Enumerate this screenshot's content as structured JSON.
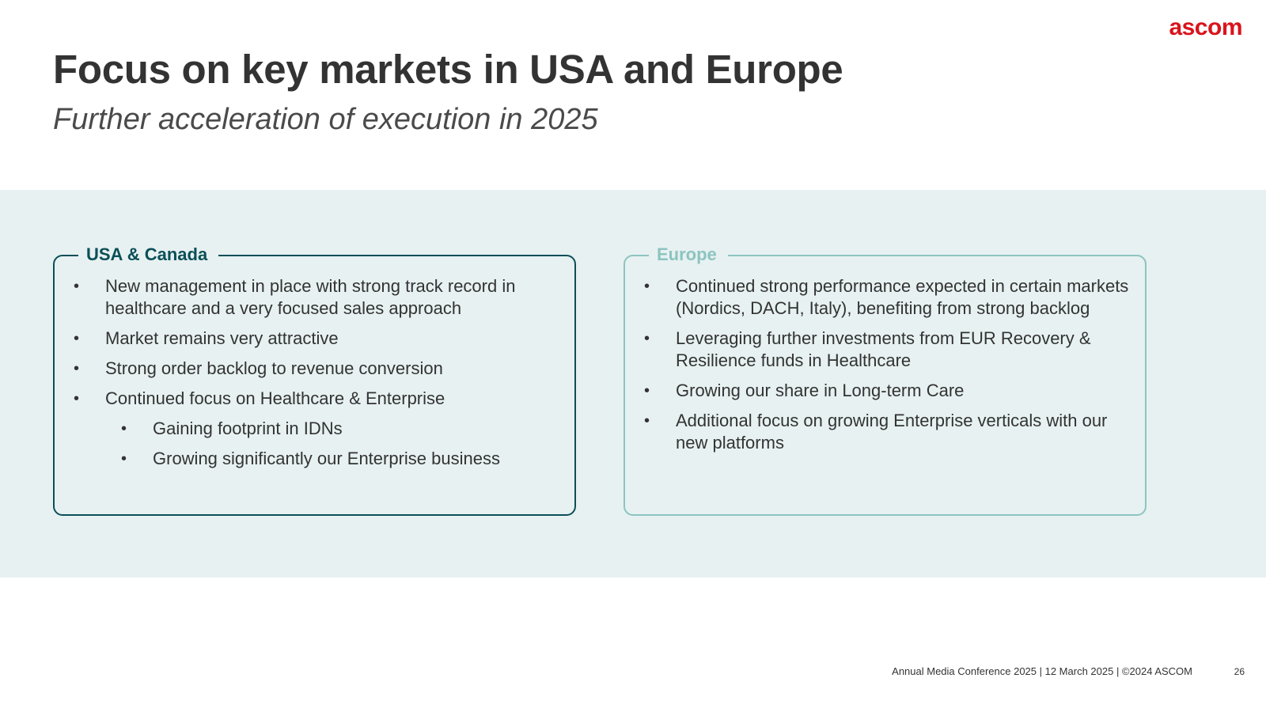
{
  "logo": "ascom",
  "title": "Focus on key markets in USA and Europe",
  "subtitle": "Further acceleration of execution in 2025",
  "cards": [
    {
      "label": "USA & Canada",
      "items": [
        {
          "text": "New management in place with strong track record in healthcare and a very focused sales approach",
          "level": 1
        },
        {
          "text": "Market remains very attractive",
          "level": 1
        },
        {
          "text": "Strong order backlog to revenue conversion",
          "level": 1
        },
        {
          "text": "Continued focus on Healthcare & Enterprise",
          "level": 1
        },
        {
          "text": "Gaining footprint in IDNs",
          "level": 2
        },
        {
          "text": "Growing significantly our Enterprise business",
          "level": 2
        }
      ]
    },
    {
      "label": "Europe",
      "items": [
        {
          "text": "Continued strong performance expected in certain markets (Nordics, DACH, Italy), benefiting from strong backlog",
          "level": 1
        },
        {
          "text": "Leveraging further investments from EUR Recovery & Resilience funds in Healthcare",
          "level": 1
        },
        {
          "text": "Growing our share in Long-term Care",
          "level": 1
        },
        {
          "text": "Additional focus on growing Enterprise verticals with our new platforms",
          "level": 1
        }
      ]
    }
  ],
  "bullet_glyph": "•",
  "footer": "Annual Media Conference 2025 | 12 March 2025 | ©2024 ASCOM",
  "page_number": "26",
  "colors": {
    "brand": "#d9141c",
    "usa_accent": "#0b4f58",
    "europe_accent": "#8cc4c0",
    "band": "#e7f1f1"
  }
}
